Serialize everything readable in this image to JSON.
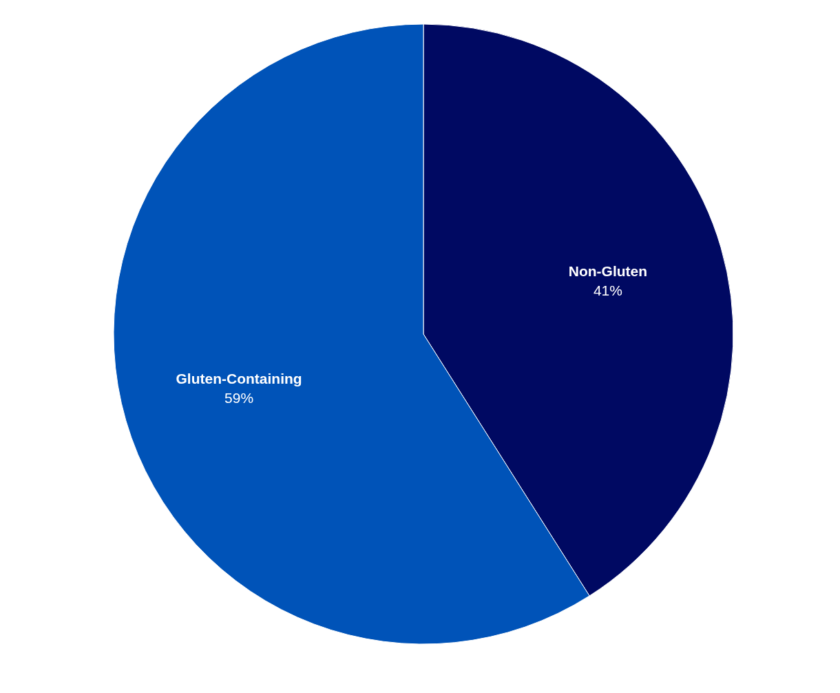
{
  "chart_data": {
    "type": "pie",
    "categories": [
      "Non-Gluten",
      "Gluten-Containing"
    ],
    "values": [
      41,
      59
    ],
    "colors": [
      "#000962",
      "#0053b8"
    ],
    "value_labels": [
      "41%",
      "59%"
    ]
  }
}
